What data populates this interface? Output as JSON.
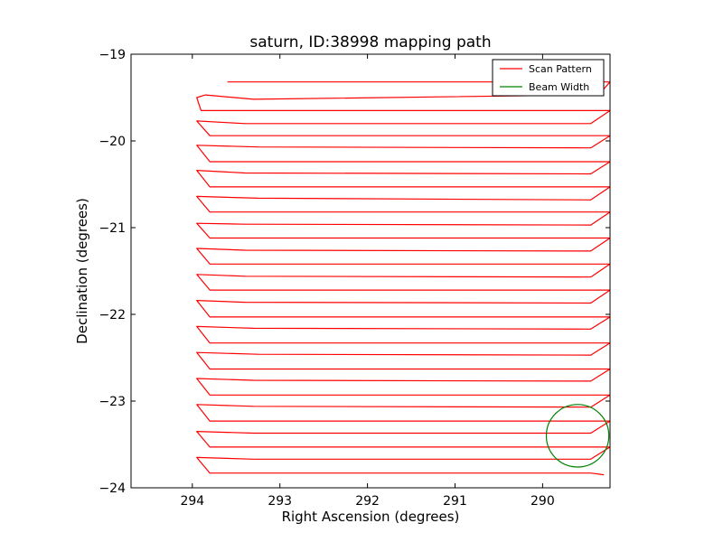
{
  "chart_data": {
    "type": "line",
    "title": "saturn, ID:38998 mapping path",
    "xlabel": "Right Ascension (degrees)",
    "ylabel": "Declination (degrees)",
    "xlim": [
      294.7,
      289.23
    ],
    "ylim": [
      -24,
      -19
    ],
    "x_inverted": true,
    "xticks": [
      294,
      293,
      292,
      291,
      290
    ],
    "xtick_labels": [
      "294",
      "293",
      "292",
      "291",
      "290"
    ],
    "yticks": [
      -19,
      -20,
      -21,
      -22,
      -23,
      -24
    ],
    "ytick_labels": [
      "−19",
      "−20",
      "−21",
      "−22",
      "−23",
      "−24"
    ],
    "grid": false,
    "legend": {
      "placement": "top-right",
      "entries": [
        {
          "label": "Scan Pattern",
          "color": "#ff0000"
        },
        {
          "label": "Beam Width",
          "color": "#008000"
        }
      ]
    },
    "series": [
      {
        "name": "Scan Pattern",
        "color": "#ff0000",
        "points": [
          [
            293.6,
            -19.32
          ],
          [
            289.23,
            -19.32
          ],
          [
            289.3,
            -19.4
          ],
          [
            289.5,
            -19.47
          ],
          [
            293.3,
            -19.52
          ],
          [
            293.85,
            -19.47
          ],
          [
            293.95,
            -19.5
          ],
          [
            293.9,
            -19.65
          ],
          [
            289.23,
            -19.65
          ],
          [
            289.45,
            -19.8
          ],
          [
            293.4,
            -19.8
          ],
          [
            293.95,
            -19.77
          ],
          [
            293.8,
            -19.94
          ],
          [
            289.23,
            -19.94
          ],
          [
            289.45,
            -20.08
          ],
          [
            293.25,
            -20.07
          ],
          [
            293.95,
            -20.05
          ],
          [
            293.8,
            -20.24
          ],
          [
            289.23,
            -20.24
          ],
          [
            289.45,
            -20.38
          ],
          [
            293.4,
            -20.37
          ],
          [
            293.95,
            -20.34
          ],
          [
            293.8,
            -20.53
          ],
          [
            289.23,
            -20.53
          ],
          [
            289.45,
            -20.68
          ],
          [
            293.25,
            -20.66
          ],
          [
            293.95,
            -20.64
          ],
          [
            293.8,
            -20.82
          ],
          [
            289.23,
            -20.82
          ],
          [
            289.45,
            -20.97
          ],
          [
            293.4,
            -20.96
          ],
          [
            293.95,
            -20.95
          ],
          [
            293.8,
            -21.12
          ],
          [
            289.23,
            -21.12
          ],
          [
            289.45,
            -21.27
          ],
          [
            293.4,
            -21.26
          ],
          [
            293.95,
            -21.24
          ],
          [
            293.8,
            -21.42
          ],
          [
            289.23,
            -21.42
          ],
          [
            289.45,
            -21.57
          ],
          [
            293.4,
            -21.56
          ],
          [
            293.95,
            -21.54
          ],
          [
            293.8,
            -21.72
          ],
          [
            289.23,
            -21.72
          ],
          [
            289.45,
            -21.87
          ],
          [
            293.4,
            -21.86
          ],
          [
            293.95,
            -21.84
          ],
          [
            293.8,
            -22.03
          ],
          [
            289.23,
            -22.03
          ],
          [
            289.45,
            -22.17
          ],
          [
            293.3,
            -22.16
          ],
          [
            293.95,
            -22.14
          ],
          [
            293.8,
            -22.33
          ],
          [
            289.23,
            -22.33
          ],
          [
            289.45,
            -22.47
          ],
          [
            293.25,
            -22.46
          ],
          [
            293.95,
            -22.44
          ],
          [
            293.8,
            -22.63
          ],
          [
            289.23,
            -22.63
          ],
          [
            289.45,
            -22.77
          ],
          [
            293.3,
            -22.76
          ],
          [
            293.95,
            -22.74
          ],
          [
            293.8,
            -22.93
          ],
          [
            289.23,
            -22.93
          ],
          [
            289.45,
            -23.07
          ],
          [
            293.3,
            -23.06
          ],
          [
            293.95,
            -23.04
          ],
          [
            293.8,
            -23.23
          ],
          [
            289.23,
            -23.23
          ],
          [
            289.45,
            -23.37
          ],
          [
            293.3,
            -23.37
          ],
          [
            293.95,
            -23.35
          ],
          [
            293.8,
            -23.53
          ],
          [
            289.23,
            -23.53
          ],
          [
            289.45,
            -23.67
          ],
          [
            293.3,
            -23.67
          ],
          [
            293.95,
            -23.65
          ],
          [
            293.8,
            -23.83
          ],
          [
            289.45,
            -23.83
          ],
          [
            289.3,
            -23.85
          ]
        ]
      },
      {
        "name": "Beam Width",
        "color": "#008000",
        "shape": "circle",
        "center": [
          289.6,
          -23.4
        ],
        "radius": 0.36
      }
    ]
  }
}
